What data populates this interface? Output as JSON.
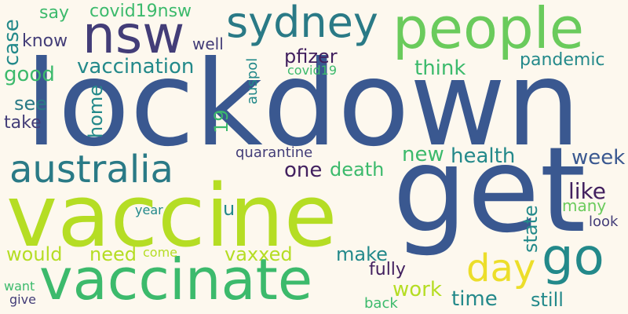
{
  "words": {
    "lockdown": "lockdown",
    "get": "get",
    "vaccine": "vaccine",
    "vaccinate": "vaccinate",
    "people": "people",
    "nsw": "nsw",
    "sydney": "sydney",
    "australia": "australia",
    "go": "go",
    "day": "day",
    "vaccination": "vaccination",
    "case": "case",
    "say": "say",
    "covid19nsw": "covid19nsw",
    "know": "know",
    "well": "well",
    "good": "good",
    "see": "see",
    "take": "take",
    "home": "home",
    "n19": "19",
    "auspol": "auspol",
    "covid19": "covid19",
    "pfizer": "pfizer",
    "think": "think",
    "pandemic": "pandemic",
    "quarantine": "quarantine",
    "one": "one",
    "death": "death",
    "new": "new",
    "health": "health",
    "week": "week",
    "like": "like",
    "state": "state",
    "many": "many",
    "look": "look",
    "year": "year",
    "u": "u",
    "would": "would",
    "need": "need",
    "come": "come",
    "vaxxed": "vaxxed",
    "make": "make",
    "fully": "fully",
    "work": "work",
    "time": "time",
    "still": "still",
    "want": "want",
    "give": "give",
    "back": "back"
  }
}
